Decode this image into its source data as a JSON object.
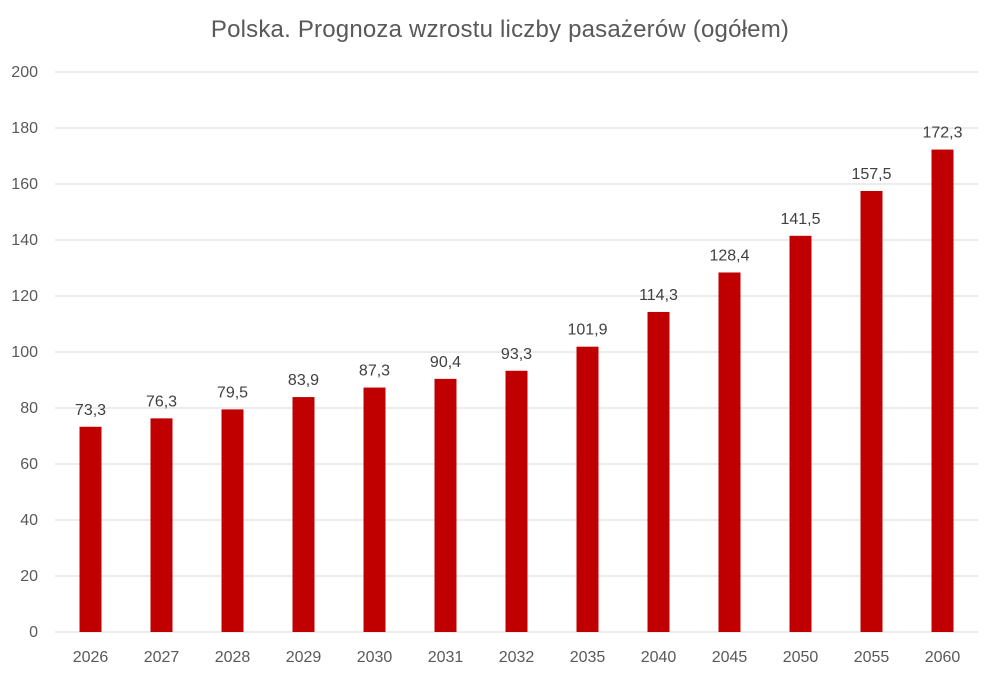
{
  "chart_data": {
    "type": "bar",
    "title": "Polska. Prognoza wzrostu liczby pasażerów (ogółem)",
    "xlabel": "",
    "ylabel": "",
    "categories": [
      "2026",
      "2027",
      "2028",
      "2029",
      "2030",
      "2031",
      "2032",
      "2035",
      "2040",
      "2045",
      "2050",
      "2055",
      "2060"
    ],
    "values": [
      73.3,
      76.3,
      79.5,
      83.9,
      87.3,
      90.4,
      93.3,
      101.9,
      114.3,
      128.4,
      141.5,
      157.5,
      172.3
    ],
    "data_labels": [
      "73,3",
      "76,3",
      "79,5",
      "83,9",
      "87,3",
      "90,4",
      "93,3",
      "101,9",
      "114,3",
      "128,4",
      "141,5",
      "157,5",
      "172,3"
    ],
    "ylim": [
      0,
      200
    ],
    "yticks": [
      0,
      20,
      40,
      60,
      80,
      100,
      120,
      140,
      160,
      180,
      200
    ],
    "grid": true,
    "legend": "none",
    "bar_color": "#C00000",
    "grid_color": "#D9D9D9"
  }
}
